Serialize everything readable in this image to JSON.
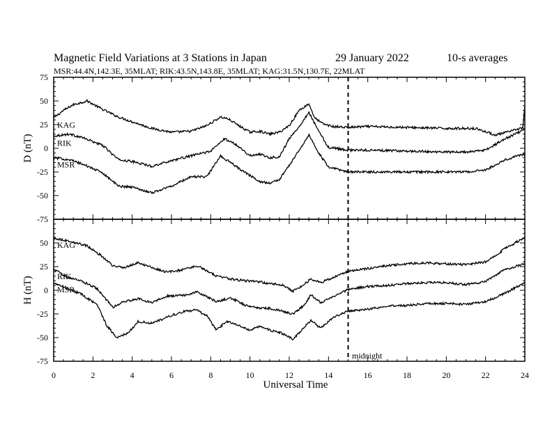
{
  "title": {
    "main": "Magnetic Field Variations at 3 Stations in Japan",
    "date": "29 January  2022",
    "averaging": "10-s averages",
    "stations": "MSR:44.4N,142.3E, 35MLAT;  RIK:43.5N,143.8E, 35MLAT;  KAG:31.5N,130.7E, 22MLAT"
  },
  "midnight_label": "midnight",
  "colors": {
    "line": "#000000",
    "background": "#ffffff"
  },
  "chart_data": [
    {
      "type": "line",
      "panel": "D",
      "ylabel": "D (nT)",
      "ylim": [
        -75,
        75
      ],
      "yticks": [
        -75,
        -50,
        -25,
        0,
        25,
        50,
        75
      ],
      "xlabel": "Universal Time",
      "xlim": [
        0,
        24
      ],
      "xticks": [
        0,
        2,
        4,
        6,
        8,
        10,
        12,
        14,
        16,
        18,
        20,
        22,
        24
      ],
      "marker_line_x": 15,
      "series": [
        {
          "name": "KAG",
          "x": [
            0,
            0.5,
            1,
            1.7,
            2.5,
            3.3,
            4,
            5,
            6,
            7,
            7.8,
            8.5,
            8.9,
            9.5,
            10,
            10.5,
            11,
            11.5,
            12,
            12.5,
            13,
            13.3,
            13.7,
            14.2,
            15,
            16,
            18,
            20,
            21.5,
            22.5,
            23.3,
            23.9,
            24
          ],
          "values": [
            32,
            40,
            46,
            50,
            41,
            33,
            28,
            21,
            17,
            18,
            24,
            33,
            31,
            23,
            17,
            18,
            15,
            17,
            24,
            40,
            47,
            32,
            26,
            23,
            22,
            23,
            22,
            21,
            21,
            14,
            18,
            22,
            44
          ]
        },
        {
          "name": "RIK",
          "x": [
            0,
            0.8,
            1.5,
            2.5,
            3.3,
            4,
            5,
            6,
            7,
            8,
            8.7,
            9.3,
            10,
            10.5,
            11,
            11.5,
            12,
            12.5,
            13,
            13.5,
            14,
            15,
            16,
            18,
            20,
            21,
            22,
            23,
            24
          ],
          "values": [
            13,
            15,
            11,
            3,
            -12,
            -14,
            -19,
            -13,
            -8,
            -3,
            10,
            4,
            -8,
            -6,
            -10,
            -9,
            10,
            23,
            38,
            18,
            1,
            -2,
            -2,
            -3,
            -4,
            -4,
            -2,
            10,
            20
          ]
        },
        {
          "name": "MSR",
          "x": [
            0,
            0.8,
            1.5,
            2.5,
            3.3,
            4,
            5,
            6,
            7,
            7.8,
            8.5,
            9,
            9.7,
            10.5,
            11,
            11.5,
            12,
            12.5,
            13,
            13.5,
            14,
            15,
            16,
            18,
            20,
            21,
            22,
            23,
            24
          ],
          "values": [
            -10,
            -12,
            -17,
            -26,
            -40,
            -41,
            -47,
            -40,
            -30,
            -30,
            -8,
            -15,
            -25,
            -35,
            -37,
            -33,
            -18,
            -2,
            14,
            -5,
            -20,
            -25,
            -25,
            -25,
            -25,
            -25,
            -23,
            -12,
            -6
          ]
        }
      ]
    },
    {
      "type": "line",
      "panel": "H",
      "ylabel": "H (nT)",
      "ylim": [
        -75,
        75
      ],
      "yticks": [
        -75,
        -50,
        -25,
        0,
        25,
        50
      ],
      "xlabel": "Universal Time",
      "xlim": [
        0,
        24
      ],
      "xticks": [
        0,
        2,
        4,
        6,
        8,
        10,
        12,
        14,
        16,
        18,
        20,
        22,
        24
      ],
      "marker_line_x": 15,
      "series": [
        {
          "name": "KAG",
          "x": [
            0,
            0.8,
            1.7,
            2.4,
            3,
            3.6,
            4.3,
            5,
            5.8,
            6.7,
            7.3,
            8.3,
            9,
            9.8,
            10.5,
            11,
            11.6,
            12.2,
            12.8,
            13.1,
            13.6,
            14.3,
            15,
            16,
            17,
            18,
            19,
            20,
            21,
            22,
            23,
            24
          ],
          "values": [
            55,
            52,
            47,
            37,
            26,
            24,
            29,
            24,
            19,
            22,
            26,
            15,
            12,
            10,
            9,
            7,
            6,
            -1,
            7,
            12,
            8,
            14,
            20,
            23,
            26,
            28,
            29,
            28,
            27,
            30,
            44,
            56
          ]
        },
        {
          "name": "RIK",
          "x": [
            0,
            0.7,
            1.4,
            2.2,
            3,
            3.6,
            4.3,
            5,
            5.8,
            6.7,
            7.3,
            8.3,
            9,
            9.8,
            10.5,
            11,
            11.6,
            12.2,
            12.8,
            13.1,
            13.6,
            14.3,
            15,
            16,
            17,
            18,
            19,
            20,
            21,
            22,
            23,
            24
          ],
          "values": [
            22,
            14,
            10,
            2,
            -18,
            -12,
            -9,
            -13,
            -6,
            -5,
            -2,
            -12,
            -8,
            -16,
            -19,
            -19,
            -22,
            -25,
            -15,
            -5,
            -13,
            -6,
            1,
            4,
            5,
            7,
            8,
            8,
            6,
            9,
            22,
            28
          ]
        },
        {
          "name": "MSR",
          "x": [
            0,
            0.7,
            1.4,
            2.2,
            2.7,
            3.2,
            3.8,
            4.3,
            5,
            5.8,
            6.7,
            7.3,
            7.8,
            8.3,
            8.8,
            9.3,
            10,
            10.5,
            11,
            11.6,
            12.2,
            12.8,
            13.1,
            13.6,
            14.3,
            15,
            16,
            17,
            18,
            19,
            20,
            21,
            22,
            23,
            24
          ],
          "values": [
            8,
            2,
            -4,
            -15,
            -37,
            -50,
            -45,
            -33,
            -35,
            -28,
            -22,
            -21,
            -27,
            -42,
            -33,
            -36,
            -42,
            -38,
            -42,
            -45,
            -52,
            -38,
            -32,
            -40,
            -28,
            -22,
            -20,
            -17,
            -16,
            -14,
            -14,
            -15,
            -12,
            -3,
            8
          ]
        }
      ]
    }
  ]
}
